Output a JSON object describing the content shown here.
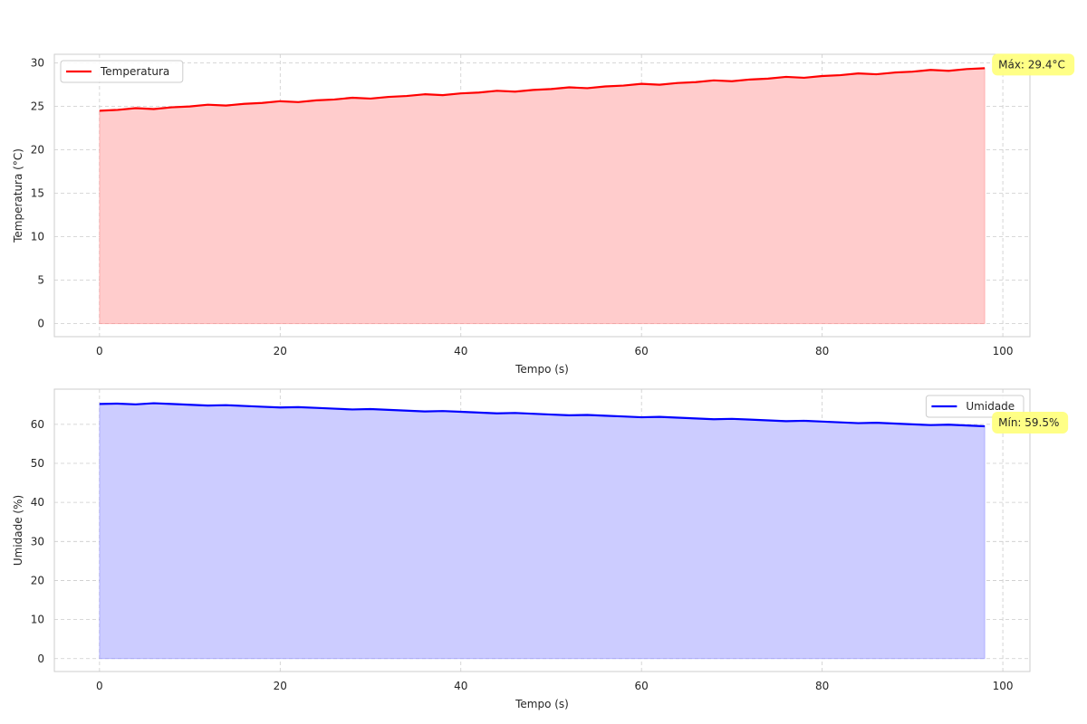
{
  "chart_data": [
    {
      "type": "area",
      "xlabel": "Tempo (s)",
      "ylabel": "Temperatura (°C)",
      "xlim": [
        -5,
        103
      ],
      "ylim": [
        -1.5,
        31
      ],
      "xticks": [
        0,
        20,
        40,
        60,
        80,
        100
      ],
      "yticks": [
        0,
        5,
        10,
        15,
        20,
        25,
        30
      ],
      "grid": true,
      "legend_position": "top-left",
      "series": [
        {
          "name": "Temperatura",
          "color": "#ff0000",
          "fill_color": "#ffcccc",
          "x": [
            0,
            2,
            4,
            6,
            8,
            10,
            12,
            14,
            16,
            18,
            20,
            22,
            24,
            26,
            28,
            30,
            32,
            34,
            36,
            38,
            40,
            42,
            44,
            46,
            48,
            50,
            52,
            54,
            56,
            58,
            60,
            62,
            64,
            66,
            68,
            70,
            72,
            74,
            76,
            78,
            80,
            82,
            84,
            86,
            88,
            90,
            92,
            94,
            96,
            98
          ],
          "values": [
            24.5,
            24.6,
            24.8,
            24.7,
            24.9,
            25.0,
            25.2,
            25.1,
            25.3,
            25.4,
            25.6,
            25.5,
            25.7,
            25.8,
            26.0,
            25.9,
            26.1,
            26.2,
            26.4,
            26.3,
            26.5,
            26.6,
            26.8,
            26.7,
            26.9,
            27.0,
            27.2,
            27.1,
            27.3,
            27.4,
            27.6,
            27.5,
            27.7,
            27.8,
            28.0,
            27.9,
            28.1,
            28.2,
            28.4,
            28.3,
            28.5,
            28.6,
            28.8,
            28.7,
            28.9,
            29.0,
            29.2,
            29.1,
            29.3,
            29.4
          ]
        }
      ],
      "annotation": {
        "text": "Máx: 29.4°C",
        "x": 98,
        "y": 29.4,
        "background": "#ffff80"
      }
    },
    {
      "type": "area",
      "xlabel": "Tempo (s)",
      "ylabel": "Umidade (%)",
      "xlim": [
        -5,
        103
      ],
      "ylim": [
        -3.3,
        69
      ],
      "xticks": [
        0,
        20,
        40,
        60,
        80,
        100
      ],
      "yticks": [
        0,
        10,
        20,
        30,
        40,
        50,
        60
      ],
      "grid": true,
      "legend_position": "top-right",
      "series": [
        {
          "name": "Umidade",
          "color": "#0000ff",
          "fill_color": "#ccccff",
          "x": [
            0,
            2,
            4,
            6,
            8,
            10,
            12,
            14,
            16,
            18,
            20,
            22,
            24,
            26,
            28,
            30,
            32,
            34,
            36,
            38,
            40,
            42,
            44,
            46,
            48,
            50,
            52,
            54,
            56,
            58,
            60,
            62,
            64,
            66,
            68,
            70,
            72,
            74,
            76,
            78,
            80,
            82,
            84,
            86,
            88,
            90,
            92,
            94,
            96,
            98
          ],
          "values": [
            65.2,
            65.3,
            65.1,
            65.4,
            65.2,
            65.0,
            64.8,
            64.9,
            64.7,
            64.5,
            64.3,
            64.4,
            64.2,
            64.0,
            63.8,
            63.9,
            63.7,
            63.5,
            63.3,
            63.4,
            63.2,
            63.0,
            62.8,
            62.9,
            62.7,
            62.5,
            62.3,
            62.4,
            62.2,
            62.0,
            61.8,
            61.9,
            61.7,
            61.5,
            61.3,
            61.4,
            61.2,
            61.0,
            60.8,
            60.9,
            60.7,
            60.5,
            60.3,
            60.4,
            60.2,
            60.0,
            59.8,
            59.9,
            59.7,
            59.5
          ]
        }
      ],
      "annotation": {
        "text": "Mín: 59.5%",
        "x": 98,
        "y": 59.5,
        "background": "#ffff80"
      }
    }
  ]
}
